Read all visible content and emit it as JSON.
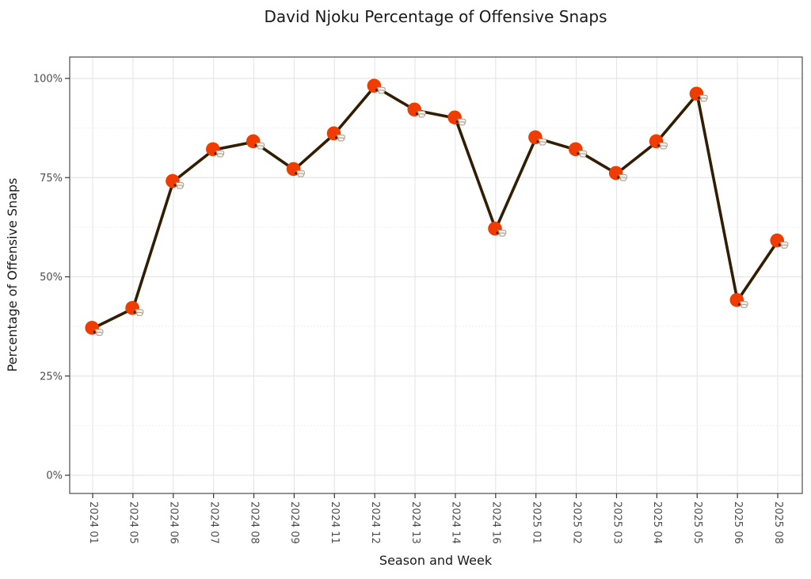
{
  "page": {
    "background_color": "#ffffff"
  },
  "chart_data": {
    "type": "line",
    "title": "David Njoku Percentage of Offensive Snaps",
    "xlabel": "Season and Week",
    "ylabel": "Percentage of Offensive Snaps",
    "categories": [
      "2024 01",
      "2024 05",
      "2024 06",
      "2024 07",
      "2024 08",
      "2024 09",
      "2024 11",
      "2024 12",
      "2024 13",
      "2024 14",
      "2024 16",
      "2025 01",
      "2025 02",
      "2025 03",
      "2025 04",
      "2025 05",
      "2025 06",
      "2025 08"
    ],
    "values": [
      37,
      42,
      74,
      82,
      84,
      77,
      86,
      98,
      92,
      90,
      62,
      85,
      82,
      76,
      84,
      96,
      44,
      59
    ],
    "unit": "%",
    "ylim": [
      0,
      100
    ],
    "y_major_ticks": [
      0,
      25,
      50,
      75,
      100
    ],
    "y_tick_labels": [
      "0%",
      "25%",
      "50%",
      "75%",
      "100%"
    ],
    "y_minor_ticks": [
      12.5,
      37.5,
      62.5,
      87.5
    ],
    "grid": "on",
    "legend": "none",
    "marker": "cleveland-browns-helmet",
    "x_tick_rotation_deg": 90,
    "colors": {
      "line": "#311D00",
      "marker_shell": "#F03C00",
      "marker_detail": "#3A2410",
      "facemask": "#F5F2EB",
      "facemask_stroke": "#A59C8C",
      "grid_major": "#E5E5E5",
      "grid_minor": "#EFEFEF",
      "panel_border": "#4D4D4D",
      "tick_mark": "#333333",
      "axis_text": "#4D4D4D",
      "title_text": "#1A1A1A"
    }
  }
}
